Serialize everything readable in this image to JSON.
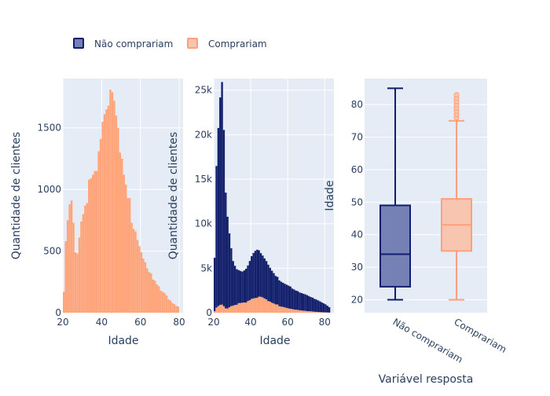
{
  "legend": {
    "items": [
      {
        "label": "Não comprariam",
        "color": "#0f1e6e",
        "fill": "#7580b5"
      },
      {
        "label": "Comprariam",
        "color": "#ffa07a",
        "fill": "#f8c5b1"
      }
    ]
  },
  "colors": {
    "plot_bg": "#e5ecf6",
    "grid": "#ffffff",
    "nao": "#13206c",
    "sim": "#ffa57b",
    "text": "#2a3f5f"
  },
  "chart_data": [
    {
      "type": "bar",
      "subtype": "histogram",
      "xlabel": "Idade",
      "ylabel": "Quantidade de clientes",
      "xlim": [
        20,
        82
      ],
      "ylim": [
        0,
        1900
      ],
      "xticks": [
        "20",
        "40",
        "60",
        "80"
      ],
      "yticks": [
        "0",
        "500",
        "1000",
        "1500"
      ],
      "grid": true,
      "series": [
        {
          "name": "Comprariam",
          "x": [
            20,
            21,
            22,
            23,
            24,
            25,
            26,
            27,
            28,
            29,
            30,
            31,
            32,
            33,
            34,
            35,
            36,
            37,
            38,
            39,
            40,
            41,
            42,
            43,
            44,
            45,
            46,
            47,
            48,
            49,
            50,
            51,
            52,
            53,
            54,
            55,
            56,
            57,
            58,
            59,
            60,
            61,
            62,
            63,
            64,
            65,
            66,
            67,
            68,
            69,
            70,
            71,
            72,
            73,
            74,
            75,
            76,
            77,
            78,
            79,
            80
          ],
          "values": [
            170,
            580,
            750,
            880,
            910,
            730,
            490,
            480,
            610,
            740,
            800,
            870,
            890,
            1080,
            1090,
            1120,
            1150,
            1150,
            1310,
            1410,
            1550,
            1610,
            1650,
            1680,
            1810,
            1790,
            1720,
            1600,
            1500,
            1300,
            1250,
            1120,
            1040,
            930,
            930,
            730,
            680,
            660,
            590,
            540,
            490,
            440,
            410,
            360,
            330,
            320,
            270,
            260,
            230,
            215,
            180,
            170,
            160,
            140,
            110,
            100,
            80,
            70,
            55,
            50,
            0
          ]
        }
      ]
    },
    {
      "type": "bar",
      "subtype": "stacked histogram",
      "xlabel": "Idade",
      "ylabel": "Quantidade de clientes",
      "xlim": [
        20,
        85
      ],
      "ylim": [
        0,
        26300
      ],
      "xticks": [
        "20",
        "40",
        "60",
        "80"
      ],
      "yticks": [
        "0",
        "5k",
        "10k",
        "15k",
        "20k",
        "25k"
      ],
      "grid": true,
      "x": [
        20,
        21,
        22,
        23,
        24,
        25,
        26,
        27,
        28,
        29,
        30,
        31,
        32,
        33,
        34,
        35,
        36,
        37,
        38,
        39,
        40,
        41,
        42,
        43,
        44,
        45,
        46,
        47,
        48,
        49,
        50,
        51,
        52,
        53,
        54,
        55,
        56,
        57,
        58,
        59,
        60,
        61,
        62,
        63,
        64,
        65,
        66,
        67,
        68,
        69,
        70,
        71,
        72,
        73,
        74,
        75,
        76,
        77,
        78,
        79,
        80,
        81,
        82,
        83
      ],
      "series": [
        {
          "name": "Comprariam",
          "values": [
            170,
            580,
            750,
            880,
            910,
            730,
            490,
            480,
            610,
            740,
            800,
            870,
            890,
            1080,
            1090,
            1120,
            1150,
            1150,
            1310,
            1410,
            1550,
            1610,
            1650,
            1680,
            1810,
            1790,
            1720,
            1600,
            1500,
            1300,
            1250,
            1120,
            1040,
            930,
            930,
            730,
            680,
            660,
            590,
            540,
            490,
            440,
            410,
            360,
            330,
            320,
            270,
            260,
            230,
            215,
            180,
            170,
            160,
            140,
            110,
            100,
            80,
            70,
            55,
            50,
            40,
            30,
            20,
            10
          ]
        },
        {
          "name": "Não comprariam",
          "values": [
            6000,
            15900,
            20000,
            23300,
            25000,
            19800,
            13000,
            10300,
            8300,
            6500,
            5000,
            4400,
            4000,
            3700,
            3600,
            3500,
            3600,
            3800,
            4000,
            4400,
            4800,
            5100,
            5300,
            5400,
            5200,
            4900,
            4700,
            4500,
            4300,
            4100,
            3800,
            3600,
            3400,
            3200,
            3100,
            2900,
            2800,
            2700,
            2650,
            2600,
            2550,
            2500,
            2300,
            2250,
            2150,
            2100,
            2000,
            1950,
            1900,
            1850,
            1800,
            1700,
            1600,
            1550,
            1450,
            1380,
            1300,
            1200,
            1100,
            1000,
            900,
            750,
            600,
            0
          ]
        }
      ]
    },
    {
      "type": "box",
      "xlabel": "Variável resposta",
      "ylabel": "Idade",
      "ylim": [
        16,
        88
      ],
      "yticks": [
        "20",
        "30",
        "40",
        "50",
        "60",
        "70",
        "80"
      ],
      "categories": [
        "Não comprariam",
        "Comprariam"
      ],
      "series": [
        {
          "name": "Não comprariam",
          "min": 20,
          "q1": 24,
          "median": 34,
          "q3": 49,
          "max": 85,
          "outliers": []
        },
        {
          "name": "Comprariam",
          "min": 20,
          "q1": 35,
          "median": 43,
          "q3": 51,
          "max": 75,
          "outliers": [
            76,
            77,
            78,
            79,
            80,
            81,
            82,
            83
          ]
        }
      ]
    }
  ]
}
